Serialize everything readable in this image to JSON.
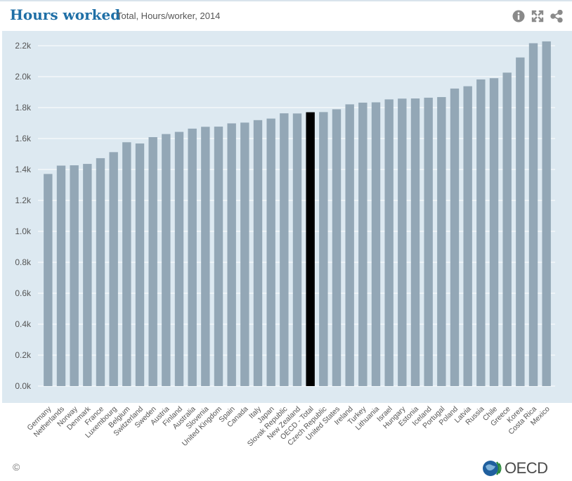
{
  "header": {
    "title": "Hours worked",
    "subtitle": "Total, Hours/worker, 2014",
    "info_icon": "info-icon",
    "fullscreen_icon": "expand-icon",
    "share_icon": "share-icon"
  },
  "footer": {
    "copyright": "©",
    "logo_text": "OECD"
  },
  "colors": {
    "bar": "#93a7b6",
    "highlight": "#000000",
    "plot_background": "#dde9f1",
    "title": "#1f6fa6"
  },
  "chart_data": {
    "type": "bar",
    "title": "Hours worked",
    "subtitle": "Total, Hours/worker, 2014",
    "xlabel": "",
    "ylabel": "",
    "ylim": [
      0,
      2200
    ],
    "yticks": [
      0,
      200,
      400,
      600,
      800,
      1000,
      1200,
      1400,
      1600,
      1800,
      2000,
      2200
    ],
    "ytick_labels": [
      "0.0k",
      "0.2k",
      "0.4k",
      "0.6k",
      "0.8k",
      "1.0k",
      "1.2k",
      "1.4k",
      "1.6k",
      "1.8k",
      "2.0k",
      "2.2k"
    ],
    "grid": true,
    "highlight": "OECD - Total",
    "categories": [
      "Germany",
      "Netherlands",
      "Norway",
      "Denmark",
      "France",
      "Luxembourg",
      "Belgium",
      "Switzerland",
      "Sweden",
      "Austria",
      "Finland",
      "Australia",
      "Slovenia",
      "United Kingdom",
      "Spain",
      "Canada",
      "Italy",
      "Japan",
      "Slovak Republic",
      "New Zealand",
      "OECD - Total",
      "Czech Republic",
      "United States",
      "Ireland",
      "Turkey",
      "Lithuania",
      "Israel",
      "Hungary",
      "Estonia",
      "Iceland",
      "Portugal",
      "Poland",
      "Latvia",
      "Russia",
      "Chile",
      "Greece",
      "Korea",
      "Costa Rica",
      "Mexico"
    ],
    "values": [
      1371,
      1425,
      1427,
      1436,
      1473,
      1512,
      1576,
      1568,
      1609,
      1629,
      1643,
      1664,
      1676,
      1677,
      1698,
      1703,
      1719,
      1729,
      1763,
      1762,
      1770,
      1771,
      1789,
      1821,
      1832,
      1834,
      1853,
      1858,
      1859,
      1864,
      1868,
      1923,
      1938,
      1982,
      1990,
      2026,
      2124,
      2216,
      2228
    ]
  }
}
